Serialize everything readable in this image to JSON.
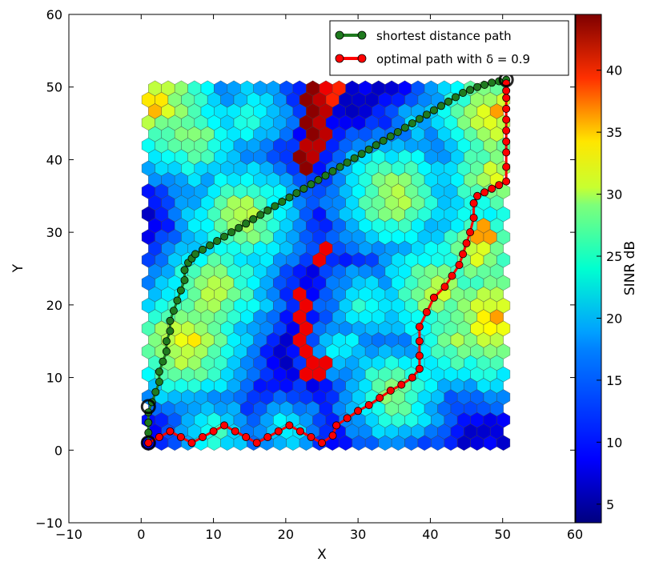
{
  "chart_data": {
    "type": "scatter",
    "xlabel": "X",
    "ylabel": "Y",
    "xlim": [
      -10,
      60
    ],
    "ylim": [
      -10,
      60
    ],
    "x_ticks": [
      "−10",
      "0",
      "10",
      "20",
      "30",
      "40",
      "50",
      "60"
    ],
    "y_ticks": [
      "−10",
      "0",
      "10",
      "20",
      "30",
      "40",
      "50",
      "60"
    ],
    "grid": false,
    "legend_position": "top-right",
    "legend": [
      {
        "label": "shortest distance path",
        "color": "#1f7a1f"
      },
      {
        "label": "optimal path with δ = 0.9",
        "color": "#ff0000"
      }
    ],
    "colorbar": {
      "label": "SINR dB",
      "range": [
        3.5,
        44.5
      ],
      "ticks": [
        "5",
        "10",
        "15",
        "20",
        "25",
        "30",
        "35",
        "40"
      ],
      "colormap": "jet"
    },
    "grid_region": {
      "x": [
        1,
        51
      ],
      "y": [
        1,
        51
      ]
    },
    "sinr_hotspots": [
      {
        "x": 2,
        "y": 48,
        "peak": 30
      },
      {
        "x": 7,
        "y": 43,
        "peak": 26
      },
      {
        "x": 10,
        "y": 22,
        "peak": 28
      },
      {
        "x": 6,
        "y": 15,
        "peak": 30
      },
      {
        "x": 14,
        "y": 32,
        "peak": 28
      },
      {
        "x": 15,
        "y": 46,
        "peak": 22
      },
      {
        "x": 35,
        "y": 35,
        "peak": 28
      },
      {
        "x": 31,
        "y": 20,
        "peak": 22
      },
      {
        "x": 41,
        "y": 22,
        "peak": 28
      },
      {
        "x": 44,
        "y": 15,
        "peak": 26
      },
      {
        "x": 47,
        "y": 27,
        "peak": 28
      },
      {
        "x": 49,
        "y": 38,
        "peak": 28
      },
      {
        "x": 49,
        "y": 46,
        "peak": 30
      },
      {
        "x": 35,
        "y": 8,
        "peak": 26
      },
      {
        "x": 28,
        "y": 14,
        "peak": 20
      },
      {
        "x": 10,
        "y": 2,
        "peak": 22
      },
      {
        "x": 20,
        "y": 3,
        "peak": 20
      },
      {
        "x": 49,
        "y": 18,
        "peak": 32
      },
      {
        "x": 38,
        "y": 45,
        "peak": 18
      }
    ],
    "sinr_high_cells": [
      {
        "x": 23.3,
        "y": 50.4,
        "v": 44
      },
      {
        "x": 25.1,
        "y": 50.4,
        "v": 40
      },
      {
        "x": 27.0,
        "y": 50.4,
        "v": 38
      },
      {
        "x": 23.3,
        "y": 48.5,
        "v": 44
      },
      {
        "x": 24.4,
        "y": 48.7,
        "v": 42
      },
      {
        "x": 26.0,
        "y": 48.7,
        "v": 38
      },
      {
        "x": 23.3,
        "y": 46.7,
        "v": 44
      },
      {
        "x": 25.1,
        "y": 46.7,
        "v": 42
      },
      {
        "x": 23.3,
        "y": 45.0,
        "v": 44
      },
      {
        "x": 25.1,
        "y": 45.0,
        "v": 42
      },
      {
        "x": 23.3,
        "y": 43.0,
        "v": 44
      },
      {
        "x": 25.1,
        "y": 43.0,
        "v": 42
      },
      {
        "x": 22.2,
        "y": 41.3,
        "v": 44
      },
      {
        "x": 23.9,
        "y": 41.3,
        "v": 42
      },
      {
        "x": 22.2,
        "y": 39.3,
        "v": 44
      },
      {
        "x": 25.1,
        "y": 27.0,
        "v": 40
      },
      {
        "x": 22.2,
        "y": 21.8,
        "v": 40
      },
      {
        "x": 22.2,
        "y": 19.9,
        "v": 40
      },
      {
        "x": 22.2,
        "y": 17.8,
        "v": 40
      },
      {
        "x": 22.2,
        "y": 16.0,
        "v": 40
      },
      {
        "x": 22.2,
        "y": 14.2,
        "v": 40
      },
      {
        "x": 23.3,
        "y": 12.3,
        "v": 40
      },
      {
        "x": 23.3,
        "y": 10.5,
        "v": 40
      },
      {
        "x": 25.1,
        "y": 11.3,
        "v": 40
      },
      {
        "x": 48.5,
        "y": 18.0,
        "v": 33
      },
      {
        "x": 47.5,
        "y": 30.0,
        "v": 33
      },
      {
        "x": 48.5,
        "y": 46.5,
        "v": 33
      },
      {
        "x": 1.5,
        "y": 48.5,
        "v": 30
      },
      {
        "x": 1.0,
        "y": 46.5,
        "v": 32
      },
      {
        "x": 7.0,
        "y": 15.0,
        "v": 30
      }
    ],
    "series": [
      {
        "name": "shortest distance path",
        "x": [
          1,
          1,
          1,
          1,
          1.5,
          2,
          2.5,
          2.5,
          3,
          3.5,
          3.5,
          4,
          4,
          4.5,
          5,
          5.5,
          6,
          6,
          6.5,
          7,
          7.5,
          8.5,
          9.5,
          10.5,
          11.5,
          12.5,
          13.5,
          14.5,
          15.5,
          16.5,
          17.5,
          18.5,
          19.5,
          20.5,
          21.5,
          22.5,
          23.5,
          24.5,
          25.5,
          26.5,
          27.5,
          28.5,
          29.5,
          30.5,
          31.5,
          32.5,
          33.5,
          34.5,
          35.5,
          36.5,
          37.5,
          38.5,
          39.5,
          40.5,
          41.5,
          42.5,
          43.5,
          44.5,
          45.5,
          46.5,
          47.5,
          48.5,
          49.5,
          50.5
        ],
        "y": [
          1,
          2.4,
          3.8,
          5.2,
          6.6,
          8,
          9.4,
          10.8,
          12.2,
          13.6,
          15,
          16.4,
          17.8,
          19.2,
          20.6,
          22,
          23.4,
          24.8,
          25.8,
          26.4,
          27.0,
          27.6,
          28.2,
          28.8,
          29.4,
          30.0,
          30.6,
          31.2,
          31.8,
          32.4,
          33.0,
          33.6,
          34.2,
          34.8,
          35.4,
          36.0,
          36.6,
          37.2,
          37.8,
          38.4,
          39.0,
          39.6,
          40.2,
          40.8,
          41.4,
          42.0,
          42.6,
          43.2,
          43.8,
          44.4,
          45.0,
          45.6,
          46.2,
          46.8,
          47.4,
          48.0,
          48.6,
          49.2,
          49.6,
          50.0,
          50.3,
          50.6,
          50.8,
          51
        ]
      },
      {
        "name": "optimal path with δ = 0.9",
        "x": [
          1,
          2.5,
          4,
          5.5,
          7,
          8.5,
          10,
          11.5,
          13,
          14.5,
          16,
          17.5,
          19,
          20.5,
          22,
          23.5,
          25,
          26.5,
          27,
          28.5,
          30,
          31.5,
          33,
          34.5,
          36,
          37.5,
          38.5,
          38.5,
          38.5,
          38.5,
          39.5,
          40.5,
          42,
          43,
          44,
          44.5,
          45,
          45.5,
          46,
          46,
          46.5,
          47.5,
          48.5,
          49.5,
          50.5,
          50.5,
          50.5,
          50.5,
          50.5,
          50.5,
          50.5,
          50.5,
          50.5,
          50.5
        ],
        "y": [
          1,
          1.8,
          2.6,
          1.8,
          1,
          1.8,
          2.6,
          3.4,
          2.6,
          1.8,
          1,
          1.8,
          2.6,
          3.4,
          2.6,
          1.8,
          1,
          2,
          3.4,
          4.4,
          5.4,
          6.2,
          7.2,
          8.2,
          9,
          10,
          11.2,
          13,
          15,
          17,
          19,
          21,
          22.5,
          24,
          25.5,
          27,
          28.5,
          30,
          32,
          34,
          35,
          35.5,
          36,
          36.5,
          37,
          39,
          41,
          42.5,
          44,
          45.5,
          47,
          48.5,
          49.5,
          50.5
        ]
      }
    ]
  }
}
